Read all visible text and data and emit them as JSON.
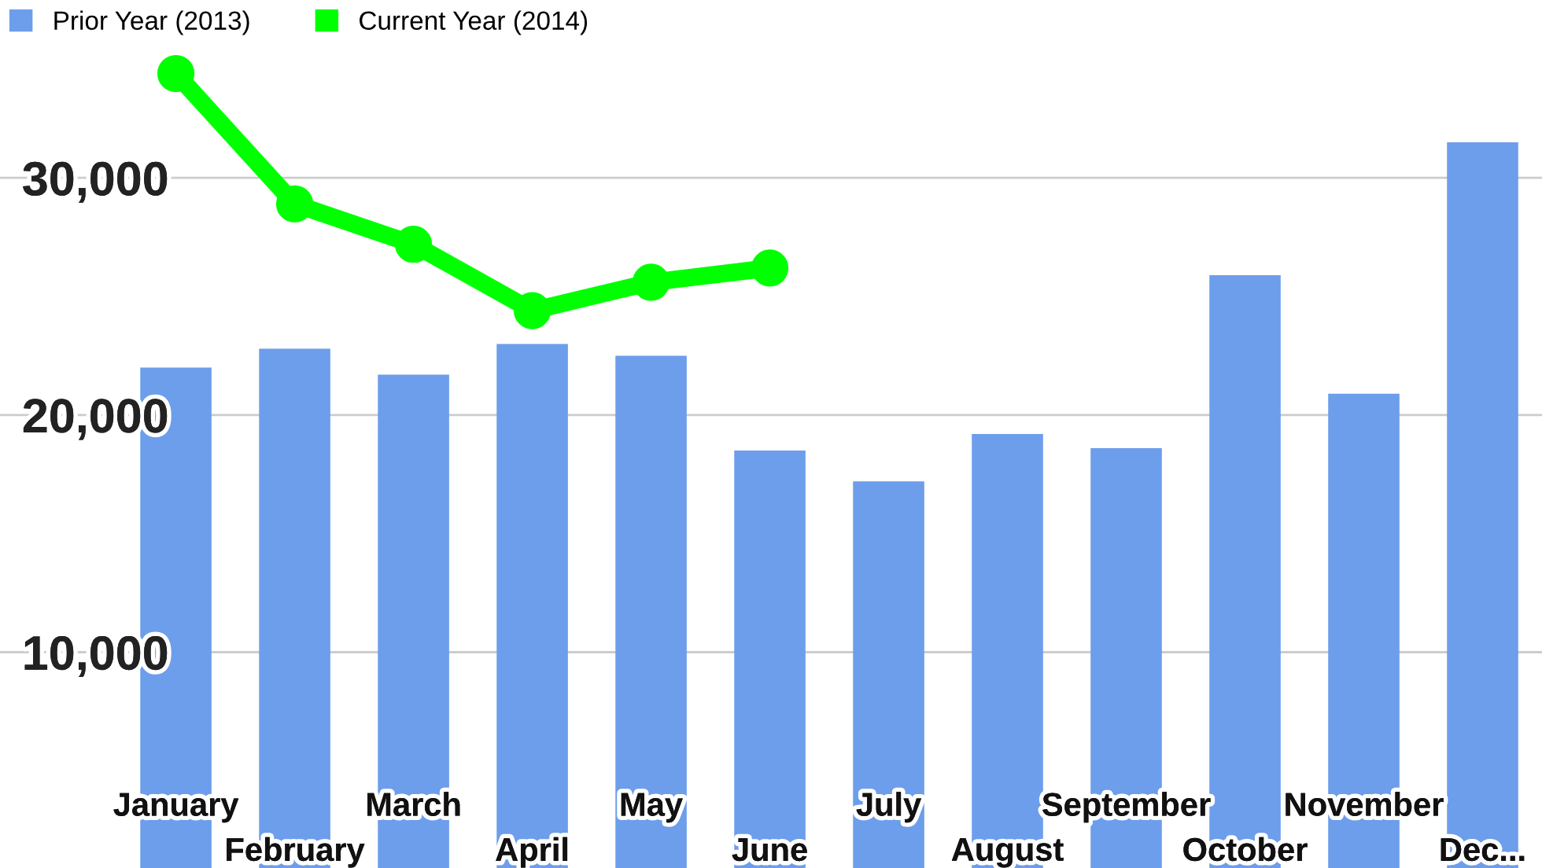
{
  "chart_data": {
    "type": "bar",
    "categories": [
      "January",
      "February",
      "March",
      "April",
      "May",
      "June",
      "July",
      "August",
      "September",
      "October",
      "November",
      "Dec..."
    ],
    "series": [
      {
        "name": "Prior Year (2013)",
        "color": "#6d9eeb",
        "values": [
          22000,
          22800,
          21700,
          23000,
          22500,
          18500,
          17200,
          19200,
          18600,
          25900,
          20900,
          31500
        ]
      },
      {
        "name": "Current Year (2014)",
        "type": "line",
        "color": "#00ff00",
        "marker": "circle",
        "values": [
          34400,
          28900,
          27200,
          24400,
          25600,
          26200,
          null,
          null,
          null,
          null,
          null,
          null
        ]
      }
    ],
    "ylim": [
      900,
      37500
    ],
    "yticks": [
      {
        "value": 10000,
        "label": "10,000"
      },
      {
        "value": 20000,
        "label": "20,000"
      },
      {
        "value": 30000,
        "label": "30,000"
      }
    ],
    "grid": "y",
    "legend": "top left"
  }
}
